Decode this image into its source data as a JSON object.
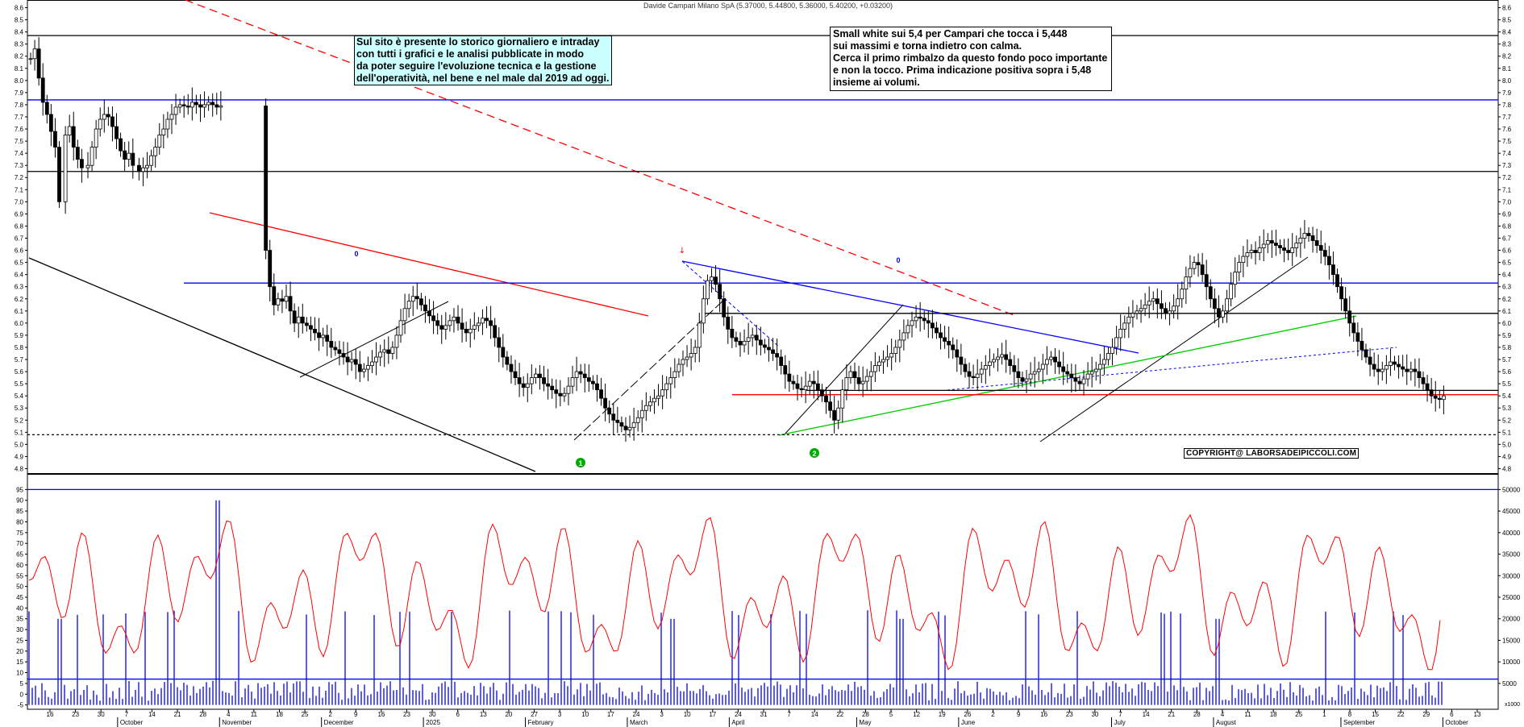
{
  "title": "Davide Campari Milano SpA (5.37000, 5.44800, 5.36000, 5.40200, +0.03200)",
  "annotations": {
    "cyan_note": "Sul sito è presente lo storico giornaliero e intraday\ncon tutti i grafici e le analisi pubblicate in modo\nda poter seguire l'evoluzione tecnica e la gestione\ndell'operatività, nel bene e nel male dal 2019 ad oggi.",
    "white_note": "Small white sui 5,4 per Campari che tocca i 5,448\nsui massimi e torna indietro con calma.\nCerca il primo rimbalzo da questo fondo poco importante\ne non la tocco. Prima indicazione positiva sopra i 5,48\ninsieme ai volumi.",
    "copyright": "COPYRIGHT@ LABORSADEIPICCOLI.COM"
  },
  "colors": {
    "up_candle": "#ffffff",
    "down_candle": "#000000",
    "blue_line": "#0000ff",
    "red_line": "#ff0000",
    "green_line": "#00cc00",
    "cyan_box": "#ccffff"
  },
  "chart_data": [
    {
      "type": "candlestick",
      "title": "Davide Campari Milano SpA (5.37000, 5.44800, 5.36000, 5.40200, +0.03200)",
      "y_axis_ticks": [
        "4.8",
        "4.9",
        "5.0",
        "5.1",
        "5.2",
        "5.3",
        "5.4",
        "5.5",
        "5.6",
        "5.7",
        "5.8",
        "5.9",
        "6.0",
        "6.1",
        "6.2",
        "6.3",
        "6.4",
        "6.5",
        "6.6",
        "6.7",
        "6.8",
        "6.9",
        "7.0",
        "7.1",
        "7.2",
        "7.3",
        "7.4",
        "7.5",
        "7.6",
        "7.7",
        "7.8",
        "7.9",
        "8.0",
        "8.1",
        "8.2",
        "8.3",
        "8.4",
        "8.5",
        "8.6"
      ],
      "ylim": [
        4.77,
        8.65
      ],
      "x_day_ticks": [
        "16",
        "23",
        "30",
        "7",
        "14",
        "21",
        "28",
        "4",
        "11",
        "18",
        "25",
        "2",
        "9",
        "16",
        "23",
        "30",
        "6",
        "13",
        "20",
        "27",
        "3",
        "10",
        "17",
        "24",
        "3",
        "10",
        "17",
        "24",
        "31",
        "7",
        "14",
        "22",
        "28",
        "5",
        "12",
        "19",
        "26",
        "2",
        "9",
        "16",
        "23",
        "30",
        "7",
        "14",
        "21",
        "28",
        "4",
        "11",
        "18",
        "25",
        "1",
        "8",
        "15",
        "22",
        "29",
        "6",
        "13"
      ],
      "x_month_labels": [
        "October",
        "November",
        "December",
        "2025",
        "February",
        "March",
        "April",
        "May",
        "June",
        "July",
        "August",
        "September",
        "October"
      ],
      "horizontal_levels": [
        {
          "value": 8.37,
          "color": "#000000",
          "style": "solid"
        },
        {
          "value": 7.84,
          "color": "#0000ff",
          "style": "solid"
        },
        {
          "value": 7.25,
          "color": "#000000",
          "style": "solid"
        },
        {
          "value": 6.33,
          "color": "#0000ff",
          "style": "solid"
        },
        {
          "value": 6.08,
          "color": "#000000",
          "style": "solid"
        },
        {
          "value": 5.445,
          "color": "#000000",
          "style": "solid"
        },
        {
          "value": 5.41,
          "color": "#ff0000",
          "style": "solid"
        },
        {
          "value": 5.08,
          "color": "#000000",
          "style": "dashed"
        }
      ],
      "markers": [
        {
          "label": "1",
          "color": "#00aa00"
        },
        {
          "label": "2",
          "color": "#00aa00"
        },
        {
          "label": "0",
          "color": "#0000ff"
        },
        {
          "label": "0",
          "color": "#0000ff"
        },
        {
          "label": "↓",
          "color": "#ff0000"
        }
      ],
      "last_close": 5.402
    },
    {
      "type": "bar+line",
      "name": "volume-oscillator",
      "left_axis_ticks": [
        "-5",
        "0",
        "5",
        "10",
        "15",
        "20",
        "25",
        "30",
        "35",
        "40",
        "45",
        "50",
        "55",
        "60",
        "65",
        "70",
        "75",
        "80",
        "85",
        "90",
        "95"
      ],
      "left_ylim": [
        -7,
        100
      ],
      "right_axis_ticks": [
        "5000",
        "10000",
        "15000",
        "20000",
        "25000",
        "30000",
        "35000",
        "40000",
        "45000",
        "50000"
      ],
      "right_ylim": [
        0,
        52000
      ],
      "right_axis_unit": "x1000",
      "levels": [
        95,
        7
      ]
    }
  ]
}
